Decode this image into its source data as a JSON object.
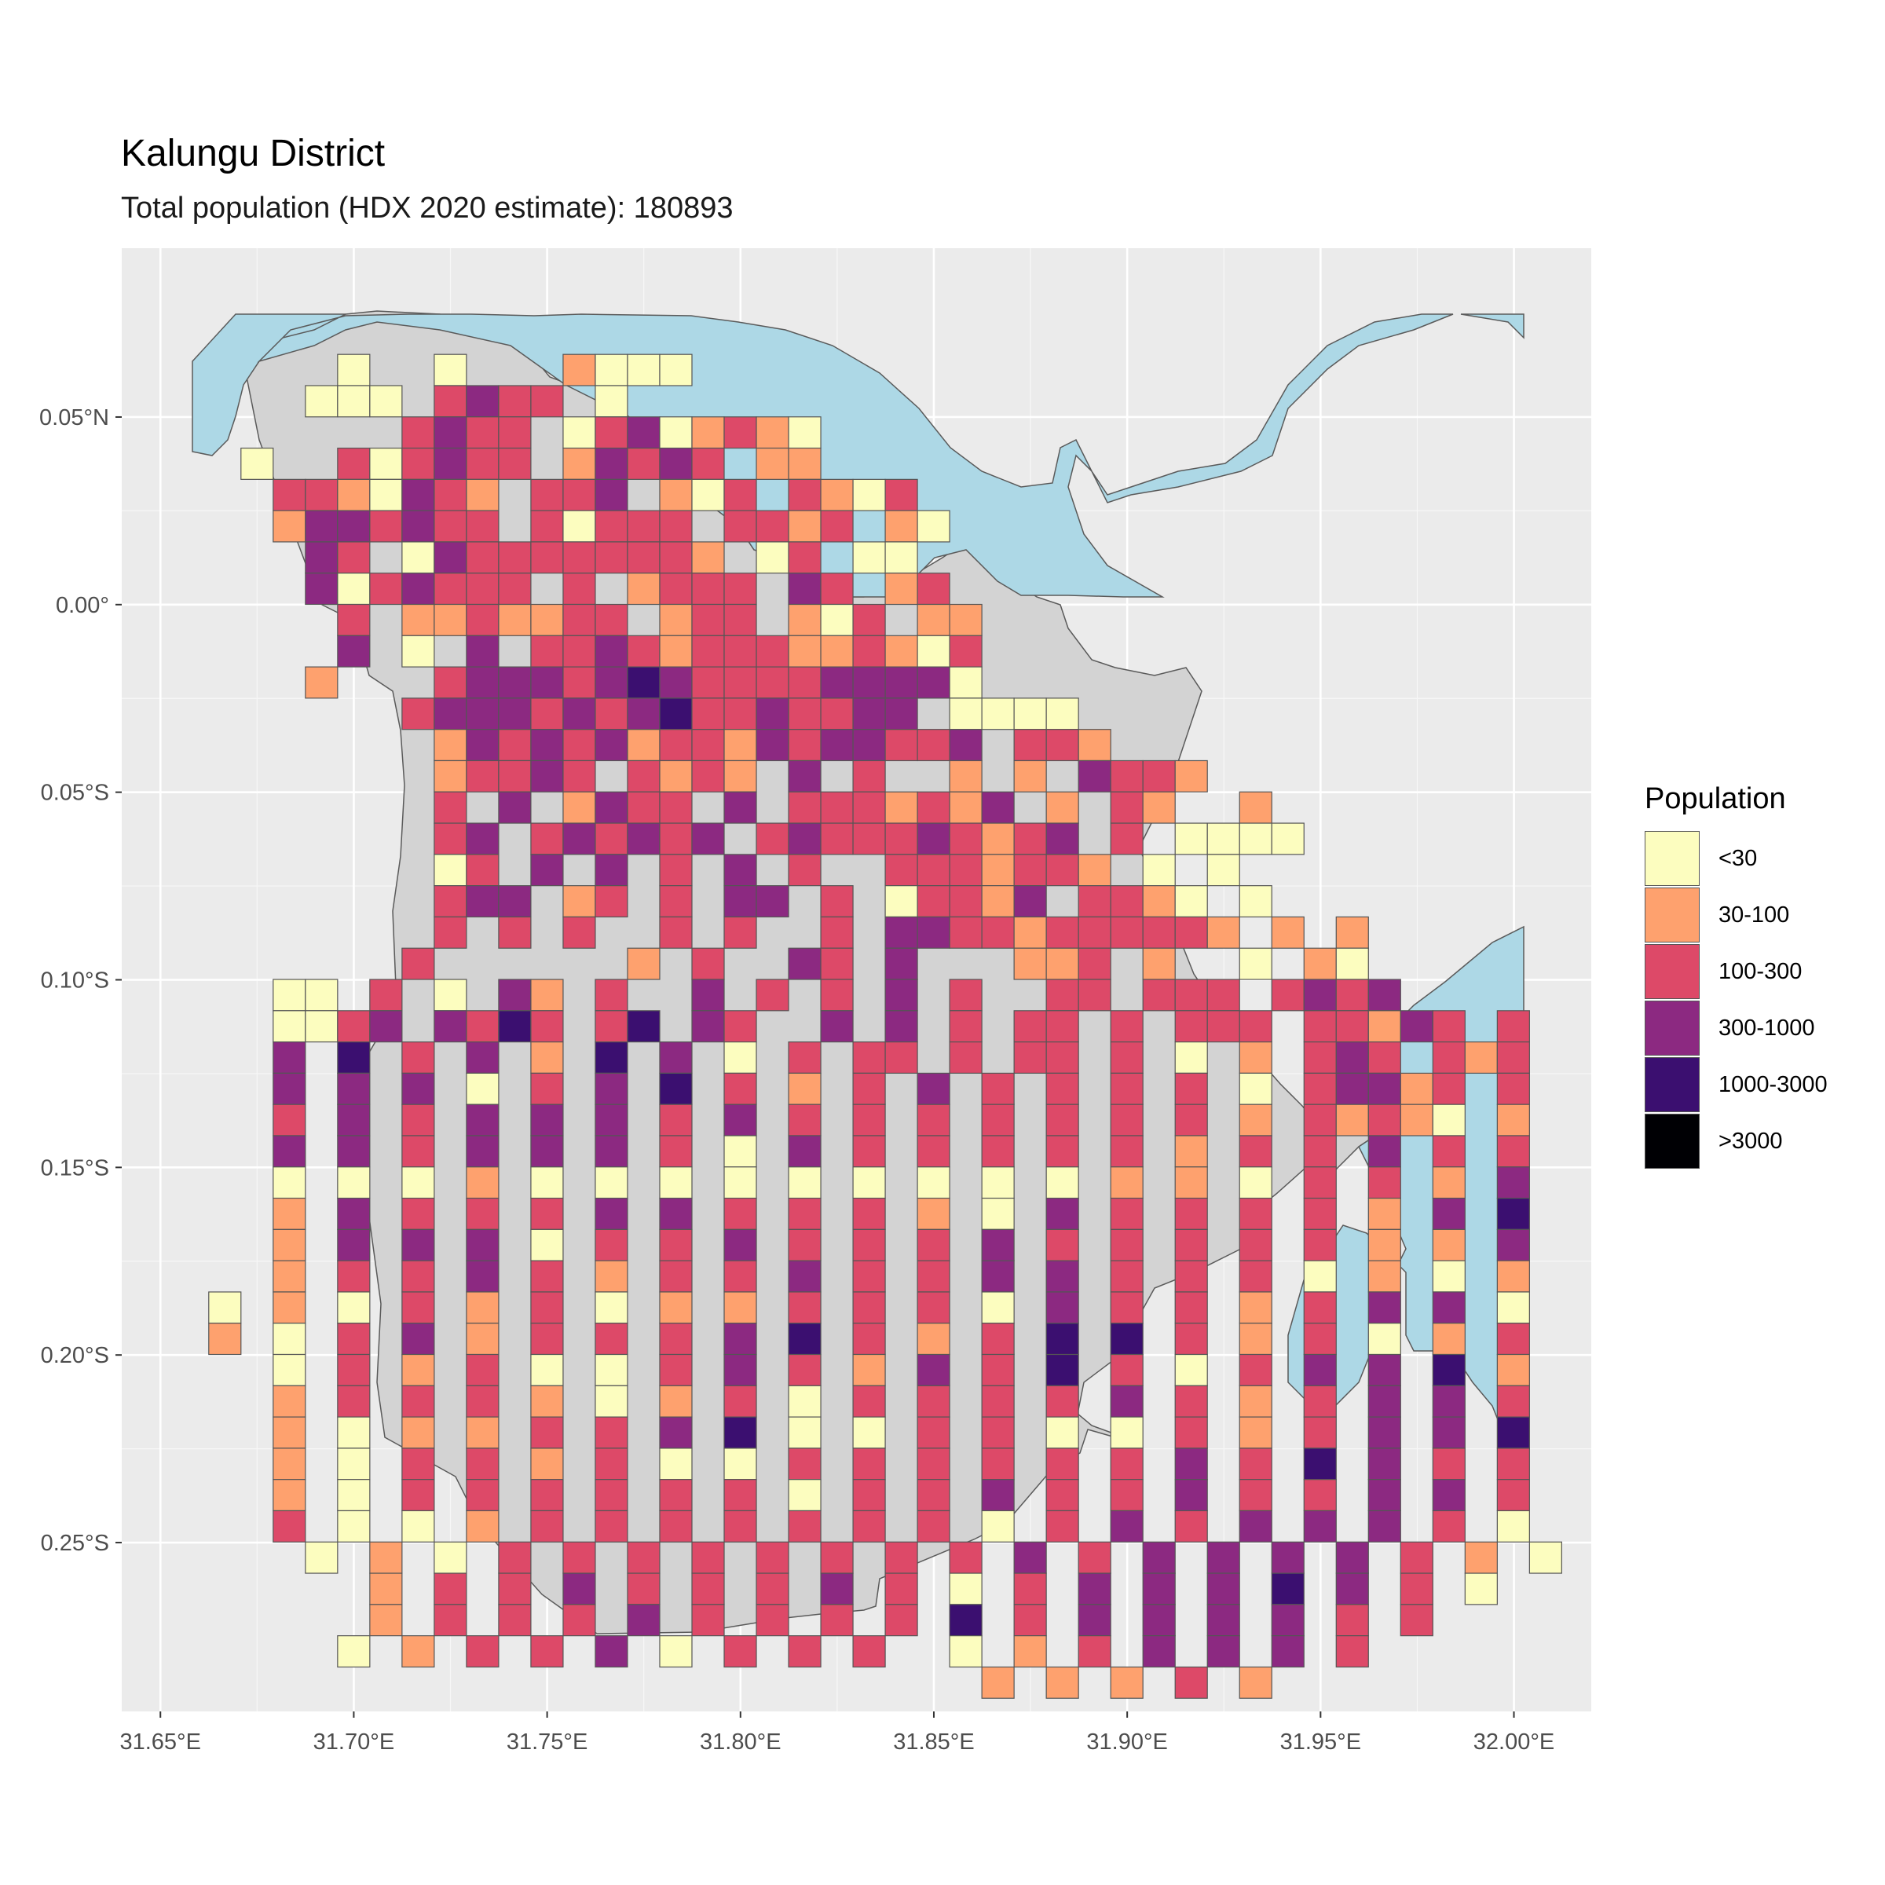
{
  "title": "Kalungu District",
  "subtitle": "Total population (HDX 2020 estimate): 180893",
  "legend": {
    "title": "Population",
    "items": [
      {
        "label": "<30",
        "color": "#FCFDBF"
      },
      {
        "label": "30-100",
        "color": "#FEA16E"
      },
      {
        "label": "100-300",
        "color": "#DD4968"
      },
      {
        "label": "300-1000",
        "color": "#8C2981"
      },
      {
        "label": "1000-3000",
        "color": "#3B0F70"
      },
      {
        "label": ">3000",
        "color": "#000004"
      }
    ]
  },
  "colors": {
    "panel_background": "#EBEBEB",
    "gridline": "#FFFFFF",
    "land": "#D3D3D3",
    "water": "#ADD8E6",
    "cell_border": "#555555"
  },
  "chart_data": {
    "type": "heatmap",
    "x_axis": {
      "range": [
        31.64,
        32.02
      ],
      "ticks": [
        "31.65°E",
        "31.70°E",
        "31.75°E",
        "31.80°E",
        "31.85°E",
        "31.90°E",
        "31.95°E",
        "32.00°E"
      ],
      "tick_values": [
        31.65,
        31.7,
        31.75,
        31.8,
        31.85,
        31.9,
        31.95,
        32.0
      ]
    },
    "y_axis": {
      "range": [
        -0.295,
        0.095
      ],
      "ticks": [
        "0.05°N",
        "0.00°",
        "0.05°S",
        "0.10°S",
        "0.15°S",
        "0.20°S",
        "0.25°S"
      ],
      "tick_values": [
        0.05,
        0.0,
        -0.05,
        -0.1,
        -0.15,
        -0.2,
        -0.25
      ]
    },
    "grid": true,
    "legend_position": "right",
    "cell_size_deg": 0.00833,
    "origin": {
      "lon": 31.6625,
      "lat": 0.0667
    },
    "class_codes": {
      "1": "<30",
      "2": "30-100",
      "3": "100-300",
      "4": "300-1000",
      "5": "1000-3000",
      "6": ">3000"
    },
    "rows": [
      "....1..1...2111.............................",
      "...111.3433.1...............................",
      "......3433.13412321..........................",
      ".1..313433.24343.22..........................",
      "..3321432.334.213.3213........................",
      "..2443433.31333.3323.21.......................",
      "...43.1433333332.13.11.........................",
      "...4134333.3.2333.43.23........................",
      "....3.2232233.233.213.22........................",
      "....4.1.4.33432333223213.........................",
      "...2...34443454333344441........................",
      "......3444343453343344.1111......................",
      ".......24343423324344334.332......................",
      ".......23343.3232.4.3..2.2.4332...................",
      ".......3.4.2433.4.3332324.2.32..2....................",
      ".......34.343434.3433343234.3.1111....................",
      ".......13.4.4.3.4.3..3332332.1.1.....................",
      ".......344.23.3.44.3.13324.3321.1.....................",
      ".......3.3.3..3.3..3.44332333332.2.2....................",
      "......3......2.3..43.4...223.2..1.21....................",
      "..11.3.1.42.3..4.3.3.4.3..33.333.3434....................",
      "..1134.4353.35.43..4.4.3.33.3.333.33243.3.................",
      "..4.5.3.4.2.5.4.1.3.33.3.33.3.1.2.343.323.3..1.............",
      "..4.4.4.1.3.4.5.3.2.3.4.3.3.3.3.1.34423.3.11...............",
      "..3.4.3.4.4.4.3.4.3.3.3.3.3.3.3.2.32321.2.1..................",
      "..4.4.3.4.4.4.3.1.4.3.3.3.3.3.2.3.3.4.3.3.2.1.1.2.........",
      "..1.1.1.2.1.1.1.1.1.1.1.1.1.2.2.1.3.3.2.4.1.1.3.3.2.1.2.1.",
      "..2.4.3.3.3.4.4.3.3.3.2.1.4.3.3.3.3.2.4.5.2.3.3.2......4...",
      "..2.4.4.4.1.3.3.4.3.3.3.4.3.3.3.3.3.2.2.4.1.5.3.3.1.........",
      "..2.3.3.4.3.2.3.3.4.3.3.4.4.3.3.3.1.2.1.2.1.5.4.3.2.........",
      "1.2.1.3.2.3.1.2.2.3.3.3.1.4.3.3.2.3.4.4.1.2.4.6.4.2.........",
      "2.1.3.4.2.3.3.3.4.5.3.2.3.5.5.3.2.3.1.2.3.4.5.5.4.2.2.......",
      "..1.3.2.3.1.1.3.4.3.2.4.3.5.3.1.3.4.4.5.2.4.3.4.4.3.2.......",
      "..2.3.3.3.2.1.2.3.1.3.3.3.3.4.3.2.3.4.4.3.2.1.3.3.4.1.......",
      "..2.1.2.2.3.3.4.5.1.1.3.3.1.1.3.2.3.4.4.5.4.2.................",
      "..2.1.3.3.2.3.1.1.3.3.3.3.3.3.4.3.5.4.3.3.................",
      "..2.1.3.3.3.3.3.3.1.3.3.4.3.3.4.3.3.4.4.3.2.3.1.............",
      "..3.1.1.2.3.3.3.3.3.3.3.1.3.4.3.4.4.4.3.1.1..............",
      "...1.2.1.3.3.3.3.3.3.3.3.4.3.4.4.4.4.3.2.1..............",
      ".....2.3.3.4.3.3.3.4.3.1.3.4.4.4.5.4.3.1...2.............",
      ".....2.3.3.3.4.3.3.3.3.5.3.4.4.4.4.3.3..................",
      "....1.2.3.3.4.1.3.3.3..1.2.3.4.4.4.3.....................",
      "........................2.2.2.3.2........................",
      ".........................2.3.2.2........................"
    ]
  }
}
